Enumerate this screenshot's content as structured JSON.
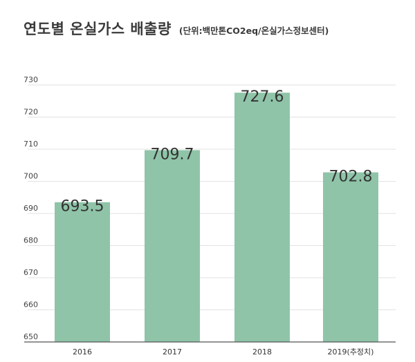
{
  "chart_data": {
    "type": "bar",
    "title": "연도별 온실가스 배출량",
    "subtitle": "(단위:백만톤CO2eq/온실가스정보센터)",
    "categories": [
      "2016",
      "2017",
      "2018",
      "2019(추정치)"
    ],
    "values": [
      693.5,
      709.7,
      727.6,
      702.8
    ],
    "value_labels": [
      "693.5",
      "709.7",
      "727.6",
      "702.8"
    ],
    "ylim": [
      650,
      730
    ],
    "yticks": [
      "650",
      "660",
      "670",
      "680",
      "690",
      "700",
      "710",
      "720",
      "730"
    ],
    "xlabel": "",
    "ylabel": "",
    "grid": true,
    "colors": {
      "bar": "#8fc4a8",
      "grid": "#e2e2e2",
      "axis": "#555555"
    }
  }
}
